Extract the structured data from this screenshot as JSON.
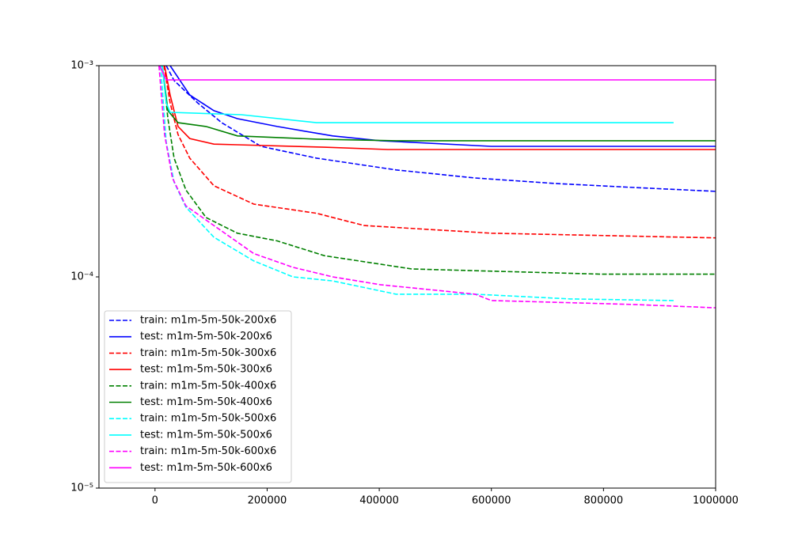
{
  "chart_data": {
    "type": "line",
    "yscale": "log",
    "legend": "lower left",
    "xlim": [
      -100000,
      1000000
    ],
    "xticks": [
      0,
      200000,
      400000,
      600000,
      800000,
      1000000
    ],
    "ylim": [
      1e-05,
      0.001
    ],
    "yticks": [
      {
        "value": 1e-05,
        "label": "10⁻⁵"
      },
      {
        "value": 0.0001,
        "label": "10⁻⁴"
      },
      {
        "value": 0.001,
        "label": "10⁻³"
      }
    ],
    "series": [
      {
        "name": "train: m1m-5m-50k-200x6",
        "color": "#0000ff",
        "linestyle": "dashed",
        "x": [
          20000,
          34000,
          76000,
          119000,
          189000,
          288000,
          430000,
          571000,
          713000,
          854000,
          1000000
        ],
        "values": [
          0.001,
          0.00085,
          0.000667,
          0.000537,
          0.000415,
          0.000365,
          0.000321,
          0.000294,
          0.000277,
          0.000265,
          0.000254
        ]
      },
      {
        "name": "test: m1m-5m-50k-200x6",
        "color": "#0000ff",
        "linestyle": "solid",
        "x": [
          27000,
          62000,
          105000,
          147000,
          218000,
          317000,
          402000,
          600000,
          1000000
        ],
        "values": [
          0.001,
          0.000726,
          0.000612,
          0.000561,
          0.000515,
          0.000465,
          0.000441,
          0.000415,
          0.000415
        ]
      },
      {
        "name": "train: m1m-5m-50k-300x6",
        "color": "#ff0000",
        "linestyle": "dashed",
        "x": [
          16000,
          27000,
          41000,
          62000,
          105000,
          176000,
          288000,
          373000,
          600000,
          1000000
        ],
        "values": [
          0.001,
          0.000667,
          0.000472,
          0.000365,
          0.00027,
          0.000221,
          0.0002,
          0.000175,
          0.000161,
          0.000153
        ]
      },
      {
        "name": "test: m1m-5m-50k-300x6",
        "color": "#ff0000",
        "linestyle": "solid",
        "x": [
          17000,
          27000,
          41000,
          62000,
          105000,
          147000,
          302000,
          415000,
          1000000
        ],
        "values": [
          0.001,
          0.000726,
          0.000515,
          0.000452,
          0.000425,
          0.000422,
          0.000411,
          0.000401,
          0.000401
        ]
      },
      {
        "name": "train: m1m-5m-50k-400x6",
        "color": "#008000",
        "linestyle": "dashed",
        "x": [
          13000,
          23000,
          34000,
          55000,
          91000,
          147000,
          218000,
          302000,
          458000,
          798000,
          1000000
        ],
        "values": [
          0.001,
          0.000561,
          0.000365,
          0.000258,
          0.000191,
          0.000161,
          0.000148,
          0.000126,
          0.000109,
          0.000103,
          0.000103
        ]
      },
      {
        "name": "test: m1m-5m-50k-400x6",
        "color": "#008000",
        "linestyle": "solid",
        "x": [
          13000,
          23000,
          41000,
          91000,
          147000,
          288000,
          430000,
          1000000
        ],
        "values": [
          0.001,
          0.000612,
          0.000537,
          0.000515,
          0.000465,
          0.000449,
          0.000441,
          0.000441
        ]
      },
      {
        "name": "train: m1m-5m-50k-500x6",
        "color": "#00ffff",
        "linestyle": "dashed",
        "x": [
          10000,
          20000,
          34000,
          55000,
          105000,
          176000,
          246000,
          317000,
          430000,
          571000,
          741000,
          925000
        ],
        "values": [
          0.001,
          0.000434,
          0.000281,
          0.000214,
          0.000154,
          0.000119,
          0.0001,
          9.57e-05,
          8.28e-05,
          8.28e-05,
          7.86e-05,
          7.73e-05
        ]
      },
      {
        "name": "test: m1m-5m-50k-500x6",
        "color": "#00ffff",
        "linestyle": "solid",
        "x": [
          13000,
          20000,
          27000,
          154000,
          288000,
          925000
        ],
        "values": [
          0.001,
          0.000667,
          0.000601,
          0.000586,
          0.000537,
          0.000537
        ]
      },
      {
        "name": "train: m1m-5m-50k-600x6",
        "color": "#ff00ff",
        "linestyle": "dashed",
        "x": [
          7000,
          17000,
          31000,
          55000,
          105000,
          176000,
          246000,
          317000,
          402000,
          571000,
          600000,
          854000,
          1000000
        ],
        "values": [
          0.001,
          0.000472,
          0.000294,
          0.000217,
          0.000175,
          0.000129,
          0.000111,
          0.0001,
          9.18e-05,
          8.28e-05,
          7.73e-05,
          7.4e-05,
          7.14e-05
        ]
      },
      {
        "name": "test: m1m-5m-50k-600x6",
        "color": "#ff00ff",
        "linestyle": "solid",
        "x": [
          8000,
          20000,
          1000000
        ],
        "values": [
          0.001,
          0.000856,
          0.000856
        ]
      }
    ]
  }
}
